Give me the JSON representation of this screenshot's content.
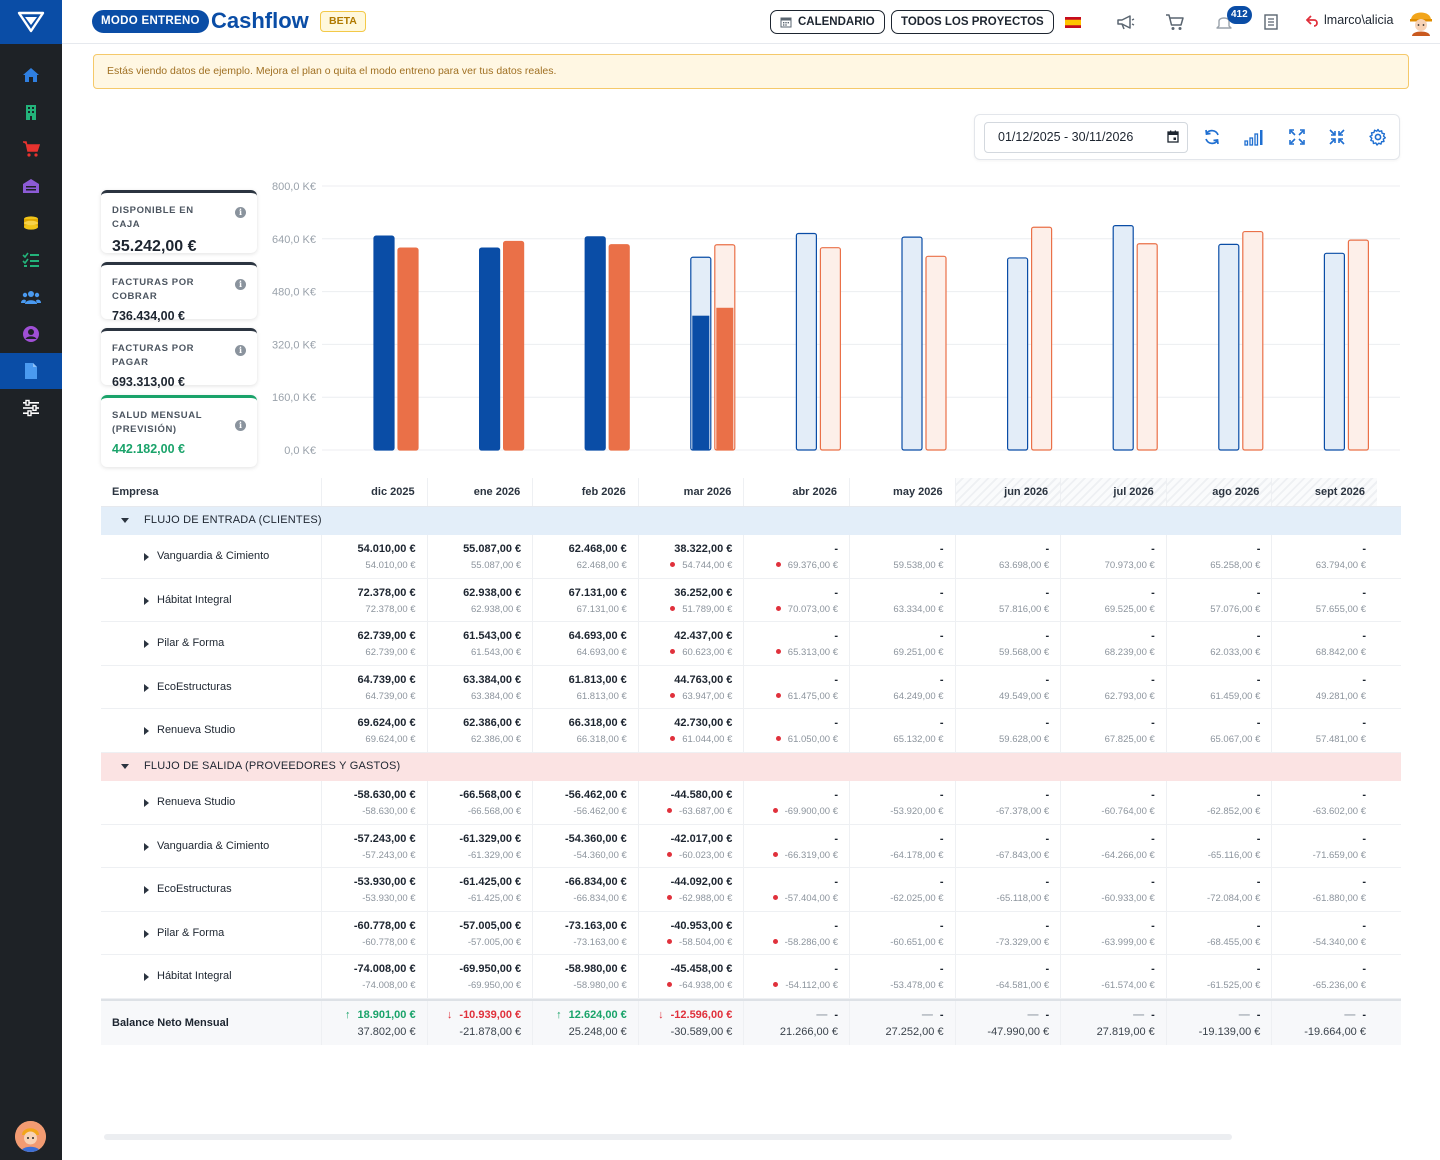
{
  "app": {
    "mode_label": "MODO ENTRENO",
    "title": "Cashflow",
    "beta_label": "BETA"
  },
  "topbar": {
    "calendar_label": "CALENDARIO",
    "projects_label": "TODOS LOS PROYECTOS",
    "notifications_count": "412",
    "user": "lmarco\\alicia"
  },
  "banner": {
    "text": "Estás viendo datos de ejemplo. Mejora el plan o quita el modo entreno para ver tus datos reales."
  },
  "toolbar": {
    "date_range": "01/12/2025 - 30/11/2026"
  },
  "kpis": [
    {
      "label": "DISPONIBLE EN CAJA",
      "value": "35.242,00 €"
    },
    {
      "label": "FACTURAS POR COBRAR",
      "value": "736.434,00 €"
    },
    {
      "label": "FACTURAS POR PAGAR",
      "value": "693.313,00 €"
    },
    {
      "label": "SALUD MENSUAL (PREVISIÓN)",
      "value": "442.182,00 €"
    }
  ],
  "chart_data": {
    "type": "bar",
    "categories": [
      "dic 2025",
      "ene 2026",
      "feb 2026",
      "mar 2026",
      "abr 2026",
      "may 2026",
      "jun 2026",
      "jul 2026",
      "ago 2026",
      "sept 2026"
    ],
    "y_ticks": [
      "800,0 K€",
      "640,0 K€",
      "480,0 K€",
      "320,0 K€",
      "160,0 K€",
      "0,0 K€"
    ],
    "ylim": [
      0,
      800
    ],
    "grid": true,
    "colors": {
      "income": "#0a4da6",
      "expense": "#ea7048",
      "income_forecast": "#e3edf8",
      "expense_forecast": "#fdefe9"
    },
    "series": [
      {
        "values": [
          648,
          612,
          646,
          584,
          656,
          645,
          582,
          680,
          623,
          596
        ],
        "actual": [
          648,
          612,
          646,
          407,
          null,
          null,
          null,
          null,
          null,
          null
        ]
      },
      {
        "values": [
          612,
          632,
          622,
          622,
          613,
          587,
          675,
          625,
          662,
          636
        ],
        "actual": [
          612,
          632,
          622,
          431,
          null,
          null,
          null,
          null,
          null,
          null
        ]
      }
    ]
  },
  "table": {
    "header_first": "Empresa",
    "months": [
      "dic 2025",
      "ene 2026",
      "feb 2026",
      "mar 2026",
      "abr 2026",
      "may 2026",
      "jun 2026",
      "jul 2026",
      "ago 2026",
      "sept 2026"
    ],
    "sections": [
      {
        "title": "FLUJO DE ENTRADA (CLIENTES)",
        "rows": [
          {
            "name": "Vanguardia & Cimiento",
            "cells": [
              [
                "54.010,00 €",
                "54.010,00 €"
              ],
              [
                "55.087,00 €",
                "55.087,00 €"
              ],
              [
                "62.468,00 €",
                "62.468,00 €"
              ],
              [
                "38.322,00 €",
                "54.744,00 €"
              ],
              [
                "-",
                "69.376,00 €"
              ],
              [
                "-",
                "59.538,00 €"
              ],
              [
                "-",
                "63.698,00 €"
              ],
              [
                "-",
                "70.973,00 €"
              ],
              [
                "-",
                "65.258,00 €"
              ],
              [
                "-",
                "63.794,00 €"
              ]
            ]
          },
          {
            "name": "Hábitat Integral",
            "cells": [
              [
                "72.378,00 €",
                "72.378,00 €"
              ],
              [
                "62.938,00 €",
                "62.938,00 €"
              ],
              [
                "67.131,00 €",
                "67.131,00 €"
              ],
              [
                "36.252,00 €",
                "51.789,00 €"
              ],
              [
                "-",
                "70.073,00 €"
              ],
              [
                "-",
                "63.334,00 €"
              ],
              [
                "-",
                "57.816,00 €"
              ],
              [
                "-",
                "69.525,00 €"
              ],
              [
                "-",
                "57.076,00 €"
              ],
              [
                "-",
                "57.655,00 €"
              ]
            ]
          },
          {
            "name": "Pilar & Forma",
            "cells": [
              [
                "62.739,00 €",
                "62.739,00 €"
              ],
              [
                "61.543,00 €",
                "61.543,00 €"
              ],
              [
                "64.693,00 €",
                "64.693,00 €"
              ],
              [
                "42.437,00 €",
                "60.623,00 €"
              ],
              [
                "-",
                "65.313,00 €"
              ],
              [
                "-",
                "69.251,00 €"
              ],
              [
                "-",
                "59.568,00 €"
              ],
              [
                "-",
                "68.239,00 €"
              ],
              [
                "-",
                "62.033,00 €"
              ],
              [
                "-",
                "68.842,00 €"
              ]
            ]
          },
          {
            "name": "EcoEstructuras",
            "cells": [
              [
                "64.739,00 €",
                "64.739,00 €"
              ],
              [
                "63.384,00 €",
                "63.384,00 €"
              ],
              [
                "61.813,00 €",
                "61.813,00 €"
              ],
              [
                "44.763,00 €",
                "63.947,00 €"
              ],
              [
                "-",
                "61.475,00 €"
              ],
              [
                "-",
                "64.249,00 €"
              ],
              [
                "-",
                "49.549,00 €"
              ],
              [
                "-",
                "62.793,00 €"
              ],
              [
                "-",
                "61.459,00 €"
              ],
              [
                "-",
                "49.281,00 €"
              ]
            ]
          },
          {
            "name": "Renueva Studio",
            "cells": [
              [
                "69.624,00 €",
                "69.624,00 €"
              ],
              [
                "62.386,00 €",
                "62.386,00 €"
              ],
              [
                "66.318,00 €",
                "66.318,00 €"
              ],
              [
                "42.730,00 €",
                "61.044,00 €"
              ],
              [
                "-",
                "61.050,00 €"
              ],
              [
                "-",
                "65.132,00 €"
              ],
              [
                "-",
                "59.628,00 €"
              ],
              [
                "-",
                "67.825,00 €"
              ],
              [
                "-",
                "65.067,00 €"
              ],
              [
                "-",
                "57.481,00 €"
              ]
            ]
          }
        ]
      },
      {
        "title": "FLUJO DE SALIDA (PROVEEDORES Y GASTOS)",
        "rows": [
          {
            "name": "Renueva Studio",
            "cells": [
              [
                "-58.630,00 €",
                "-58.630,00 €"
              ],
              [
                "-66.568,00 €",
                "-66.568,00 €"
              ],
              [
                "-56.462,00 €",
                "-56.462,00 €"
              ],
              [
                "-44.580,00 €",
                "-63.687,00 €"
              ],
              [
                "-",
                "-69.900,00 €"
              ],
              [
                "-",
                "-53.920,00 €"
              ],
              [
                "-",
                "-67.378,00 €"
              ],
              [
                "-",
                "-60.764,00 €"
              ],
              [
                "-",
                "-62.852,00 €"
              ],
              [
                "-",
                "-63.602,00 €"
              ]
            ]
          },
          {
            "name": "Vanguardia & Cimiento",
            "cells": [
              [
                "-57.243,00 €",
                "-57.243,00 €"
              ],
              [
                "-61.329,00 €",
                "-61.329,00 €"
              ],
              [
                "-54.360,00 €",
                "-54.360,00 €"
              ],
              [
                "-42.017,00 €",
                "-60.023,00 €"
              ],
              [
                "-",
                "-66.319,00 €"
              ],
              [
                "-",
                "-64.178,00 €"
              ],
              [
                "-",
                "-67.843,00 €"
              ],
              [
                "-",
                "-64.266,00 €"
              ],
              [
                "-",
                "-65.116,00 €"
              ],
              [
                "-",
                "-71.659,00 €"
              ]
            ]
          },
          {
            "name": "EcoEstructuras",
            "cells": [
              [
                "-53.930,00 €",
                "-53.930,00 €"
              ],
              [
                "-61.425,00 €",
                "-61.425,00 €"
              ],
              [
                "-66.834,00 €",
                "-66.834,00 €"
              ],
              [
                "-44.092,00 €",
                "-62.988,00 €"
              ],
              [
                "-",
                "-57.404,00 €"
              ],
              [
                "-",
                "-62.025,00 €"
              ],
              [
                "-",
                "-65.118,00 €"
              ],
              [
                "-",
                "-60.933,00 €"
              ],
              [
                "-",
                "-72.084,00 €"
              ],
              [
                "-",
                "-61.880,00 €"
              ]
            ]
          },
          {
            "name": "Pilar & Forma",
            "cells": [
              [
                "-60.778,00 €",
                "-60.778,00 €"
              ],
              [
                "-57.005,00 €",
                "-57.005,00 €"
              ],
              [
                "-73.163,00 €",
                "-73.163,00 €"
              ],
              [
                "-40.953,00 €",
                "-58.504,00 €"
              ],
              [
                "-",
                "-58.286,00 €"
              ],
              [
                "-",
                "-60.651,00 €"
              ],
              [
                "-",
                "-73.329,00 €"
              ],
              [
                "-",
                "-63.999,00 €"
              ],
              [
                "-",
                "-68.455,00 €"
              ],
              [
                "-",
                "-54.340,00 €"
              ]
            ]
          },
          {
            "name": "Hábitat Integral",
            "cells": [
              [
                "-74.008,00 €",
                "-74.008,00 €"
              ],
              [
                "-69.950,00 €",
                "-69.950,00 €"
              ],
              [
                "-58.980,00 €",
                "-58.980,00 €"
              ],
              [
                "-45.458,00 €",
                "-64.938,00 €"
              ],
              [
                "-",
                "-54.112,00 €"
              ],
              [
                "-",
                "-53.478,00 €"
              ],
              [
                "-",
                "-64.581,00 €"
              ],
              [
                "-",
                "-61.574,00 €"
              ],
              [
                "-",
                "-61.525,00 €"
              ],
              [
                "-",
                "-65.236,00 €"
              ]
            ]
          }
        ]
      }
    ],
    "balance": {
      "label": "Balance Neto Mensual",
      "cells": [
        {
          "top": "18.901,00 €",
          "bottom": "37.802,00 €",
          "trend": "up"
        },
        {
          "top": "-10.939,00 €",
          "bottom": "-21.878,00 €",
          "trend": "down"
        },
        {
          "top": "12.624,00 €",
          "bottom": "25.248,00 €",
          "trend": "up"
        },
        {
          "top": "-12.596,00 €",
          "bottom": "-30.589,00 €",
          "trend": "down"
        },
        {
          "top": "-",
          "bottom": "21.266,00 €",
          "trend": "flat"
        },
        {
          "top": "-",
          "bottom": "27.252,00 €",
          "trend": "flat"
        },
        {
          "top": "-",
          "bottom": "-47.990,00 €",
          "trend": "flat"
        },
        {
          "top": "-",
          "bottom": "27.819,00 €",
          "trend": "flat"
        },
        {
          "top": "-",
          "bottom": "-19.139,00 €",
          "trend": "flat"
        },
        {
          "top": "-",
          "bottom": "-19.664,00 €",
          "trend": "flat"
        }
      ]
    }
  }
}
